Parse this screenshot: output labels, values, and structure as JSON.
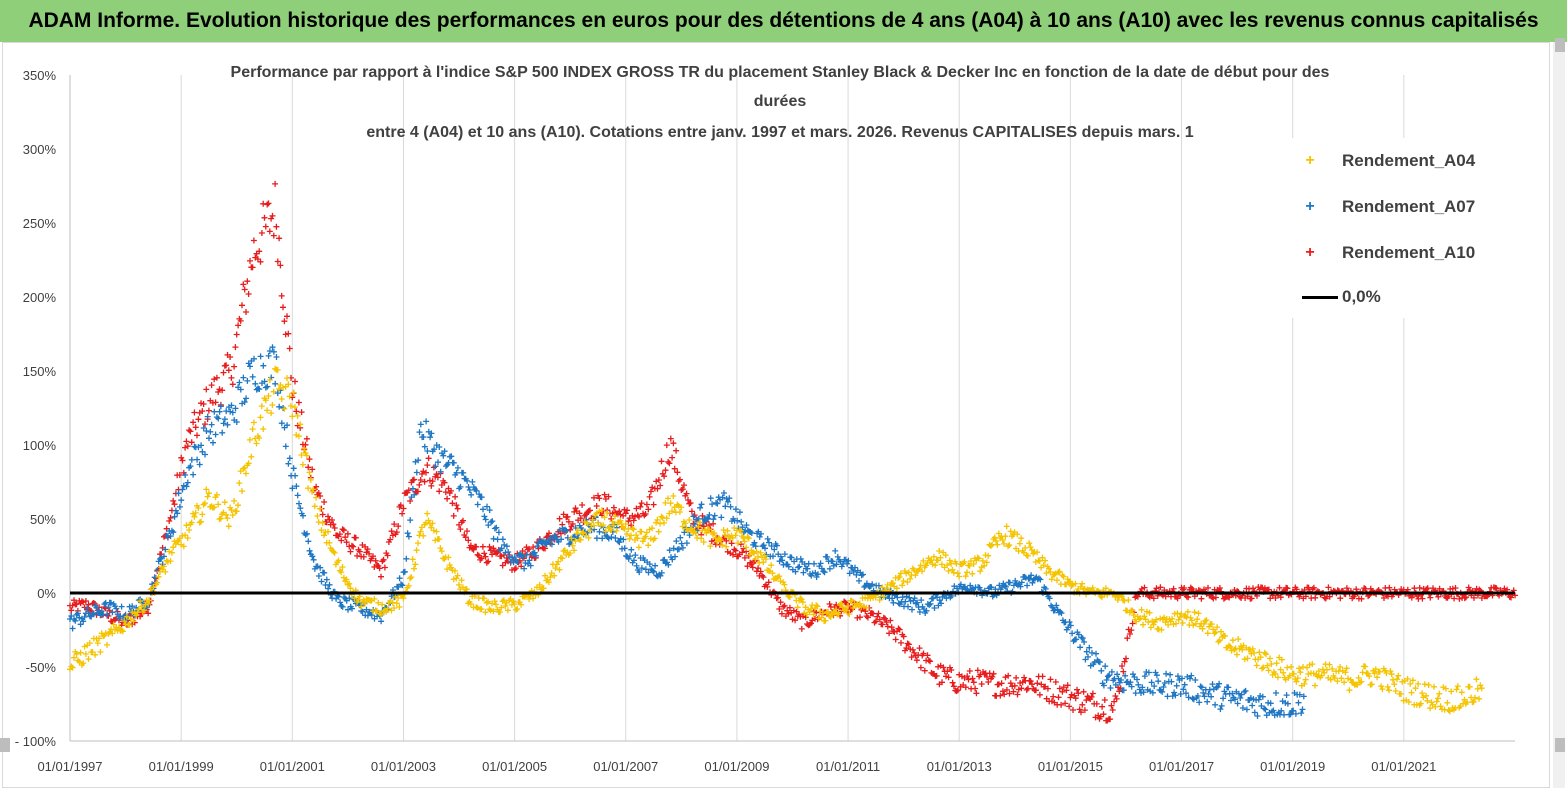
{
  "banner": {
    "text": "ADAM Informe. Evolution historique des performances en euros pour des détentions de 4 ans (A04) à 10 ans (A10) avec les revenus connus capitalisés"
  },
  "chart_data": {
    "type": "scatter",
    "title_lines": [
      "Performance par rapport à l'indice S&P 500 INDEX GROSS TR  du placement Stanley Black & Decker Inc en fonction de la date de début pour des",
      "durées",
      "entre 4 (A04) et 10 ans (A10).  Cotations entre janv. 1997 et mars. 2026. Revenus CAPITALISES depuis mars. 1"
    ],
    "xlim": [
      1997.0,
      2023.0
    ],
    "ylim": [
      -100,
      350
    ],
    "x_ticks": [
      {
        "label": "01/01/1997",
        "x": 1997.0
      },
      {
        "label": "01/01/1999",
        "x": 1999.0
      },
      {
        "label": "01/01/2001",
        "x": 2001.0
      },
      {
        "label": "01/01/2003",
        "x": 2003.0
      },
      {
        "label": "01/01/2005",
        "x": 2005.0
      },
      {
        "label": "01/01/2007",
        "x": 2007.0
      },
      {
        "label": "01/01/2009",
        "x": 2009.0
      },
      {
        "label": "01/01/2011",
        "x": 2011.0
      },
      {
        "label": "01/01/2013",
        "x": 2013.0
      },
      {
        "label": "01/01/2015",
        "x": 2015.0
      },
      {
        "label": "01/01/2017",
        "x": 2017.0
      },
      {
        "label": "01/01/2019",
        "x": 2019.0
      },
      {
        "label": "01/01/2021",
        "x": 2021.0
      }
    ],
    "y_ticks": [
      {
        "label": "350%",
        "y": 350
      },
      {
        "label": "300%",
        "y": 300
      },
      {
        "label": "250%",
        "y": 250
      },
      {
        "label": "200%",
        "y": 200
      },
      {
        "label": "150%",
        "y": 150
      },
      {
        "label": "100%",
        "y": 100
      },
      {
        "label": "50%",
        "y": 50
      },
      {
        "label": "0%",
        "y": 0
      },
      {
        "label": "-50%",
        "y": -50
      },
      {
        "label": "- 100%",
        "y": -100
      }
    ],
    "grid_vertical": true,
    "legend_position": "top-right",
    "colors": {
      "A04": "#f5c400",
      "A07": "#1f77c4",
      "A10": "#e81c1c",
      "zero": "#000000",
      "grid": "#d9d9d9"
    },
    "legend": [
      {
        "label": "Rendement_A04",
        "marker": "+",
        "color": "#f5c400"
      },
      {
        "label": "Rendement_A07",
        "marker": "+",
        "color": "#1f77c4"
      },
      {
        "label": "Rendement_A10",
        "marker": "+",
        "color": "#e81c1c"
      },
      {
        "label": "0,0%",
        "marker": "line",
        "color": "#000000"
      }
    ],
    "series": [
      {
        "name": "Rendement_A04",
        "color": "#f5c400",
        "x": [
          1997.0,
          1997.3,
          1997.7,
          1998.0,
          1998.4,
          1998.8,
          1999.1,
          1999.5,
          1999.9,
          2000.3,
          2000.7,
          2001.0,
          2001.4,
          2001.8,
          2002.2,
          2002.6,
          2003.0,
          2003.4,
          2003.8,
          2004.2,
          2004.6,
          2005.0,
          2005.4,
          2005.8,
          2006.2,
          2006.6,
          2007.0,
          2007.4,
          2007.8,
          2008.2,
          2008.6,
          2009.0,
          2009.4,
          2009.8,
          2010.2,
          2010.6,
          2011.0,
          2011.4,
          2011.8,
          2012.2,
          2012.6,
          2013.0,
          2013.4,
          2013.8,
          2014.2,
          2014.6,
          2015.0,
          2015.4,
          2015.8,
          2016.2,
          2016.6,
          2017.0,
          2017.4,
          2017.8,
          2018.2,
          2018.6,
          2019.0,
          2019.5,
          2020.0,
          2020.5,
          2021.0,
          2021.5,
          2022.0,
          2022.4
        ],
        "y": [
          -50,
          -40,
          -30,
          -20,
          -5,
          25,
          40,
          65,
          50,
          105,
          140,
          130,
          60,
          20,
          -5,
          -10,
          -5,
          50,
          20,
          -5,
          -10,
          -8,
          0,
          20,
          40,
          50,
          40,
          35,
          60,
          45,
          35,
          40,
          25,
          5,
          -10,
          -15,
          -10,
          -5,
          5,
          15,
          25,
          15,
          20,
          40,
          30,
          15,
          5,
          0,
          0,
          -15,
          -20,
          -15,
          -20,
          -35,
          -40,
          -48,
          -55,
          -55,
          -58,
          -55,
          -65,
          -70,
          -72,
          -65
        ]
      },
      {
        "name": "Rendement_A07",
        "color": "#1f77c4",
        "x": [
          1997.0,
          1997.3,
          1997.7,
          1998.0,
          1998.4,
          1998.8,
          1999.1,
          1999.5,
          1999.9,
          2000.3,
          2000.7,
          2001.0,
          2001.4,
          2001.8,
          2002.2,
          2002.6,
          2003.0,
          2003.3,
          2003.7,
          2004.0,
          2004.4,
          2004.8,
          2005.2,
          2005.6,
          2006.0,
          2006.4,
          2006.8,
          2007.2,
          2007.6,
          2008.0,
          2008.4,
          2008.8,
          2009.2,
          2009.6,
          2010.0,
          2010.4,
          2010.8,
          2011.2,
          2011.6,
          2012.0,
          2012.4,
          2012.8,
          2013.2,
          2013.6,
          2014.0,
          2014.4,
          2014.8,
          2015.2,
          2015.6,
          2016.0,
          2016.5,
          2017.0,
          2017.5,
          2018.0,
          2018.5,
          2019.0,
          2019.2
        ],
        "y": [
          -20,
          -15,
          -10,
          -15,
          -5,
          40,
          80,
          110,
          120,
          150,
          155,
          80,
          20,
          -5,
          -10,
          -15,
          10,
          110,
          90,
          80,
          60,
          30,
          20,
          35,
          40,
          45,
          40,
          20,
          15,
          35,
          55,
          60,
          40,
          30,
          20,
          15,
          25,
          10,
          0,
          -5,
          -10,
          0,
          5,
          0,
          5,
          10,
          -15,
          -35,
          -55,
          -60,
          -62,
          -62,
          -68,
          -72,
          -75,
          -75,
          -72
        ]
      },
      {
        "name": "Rendement_A10",
        "color": "#e81c1c",
        "x": [
          1997.0,
          1997.3,
          1997.7,
          1998.0,
          1998.4,
          1998.8,
          1999.1,
          1999.5,
          1999.9,
          2000.3,
          2000.7,
          2001.0,
          2001.4,
          2001.8,
          2002.2,
          2002.6,
          2003.0,
          2003.4,
          2003.8,
          2004.2,
          2004.6,
          2005.0,
          2005.4,
          2005.8,
          2006.2,
          2006.6,
          2007.0,
          2007.4,
          2007.8,
          2008.2,
          2008.6,
          2009.0,
          2009.4,
          2009.8,
          2010.2,
          2010.6,
          2011.0,
          2011.4,
          2011.8,
          2012.2,
          2012.6,
          2013.0,
          2013.4,
          2013.8,
          2014.2,
          2014.6,
          2015.0,
          2015.4,
          2015.8,
          2016.2,
          2016.6,
          2017.0,
          2018.0,
          2019.0,
          2020.0,
          2021.0,
          2022.0,
          2023.0
        ],
        "y": [
          -10,
          -8,
          -15,
          -20,
          -10,
          50,
          100,
          130,
          150,
          230,
          260,
          140,
          70,
          40,
          30,
          15,
          60,
          85,
          70,
          30,
          25,
          20,
          30,
          45,
          55,
          60,
          50,
          55,
          100,
          50,
          40,
          30,
          15,
          -10,
          -20,
          -12,
          -10,
          -15,
          -25,
          -40,
          -55,
          -60,
          -60,
          -62,
          -60,
          -65,
          -70,
          -75,
          -78,
          0,
          0,
          0,
          0,
          0,
          0,
          0,
          0,
          0
        ]
      },
      {
        "name": "0,0%",
        "color": "#000000",
        "x": [
          1997.0,
          2023.0
        ],
        "y": [
          0,
          0
        ]
      }
    ]
  }
}
